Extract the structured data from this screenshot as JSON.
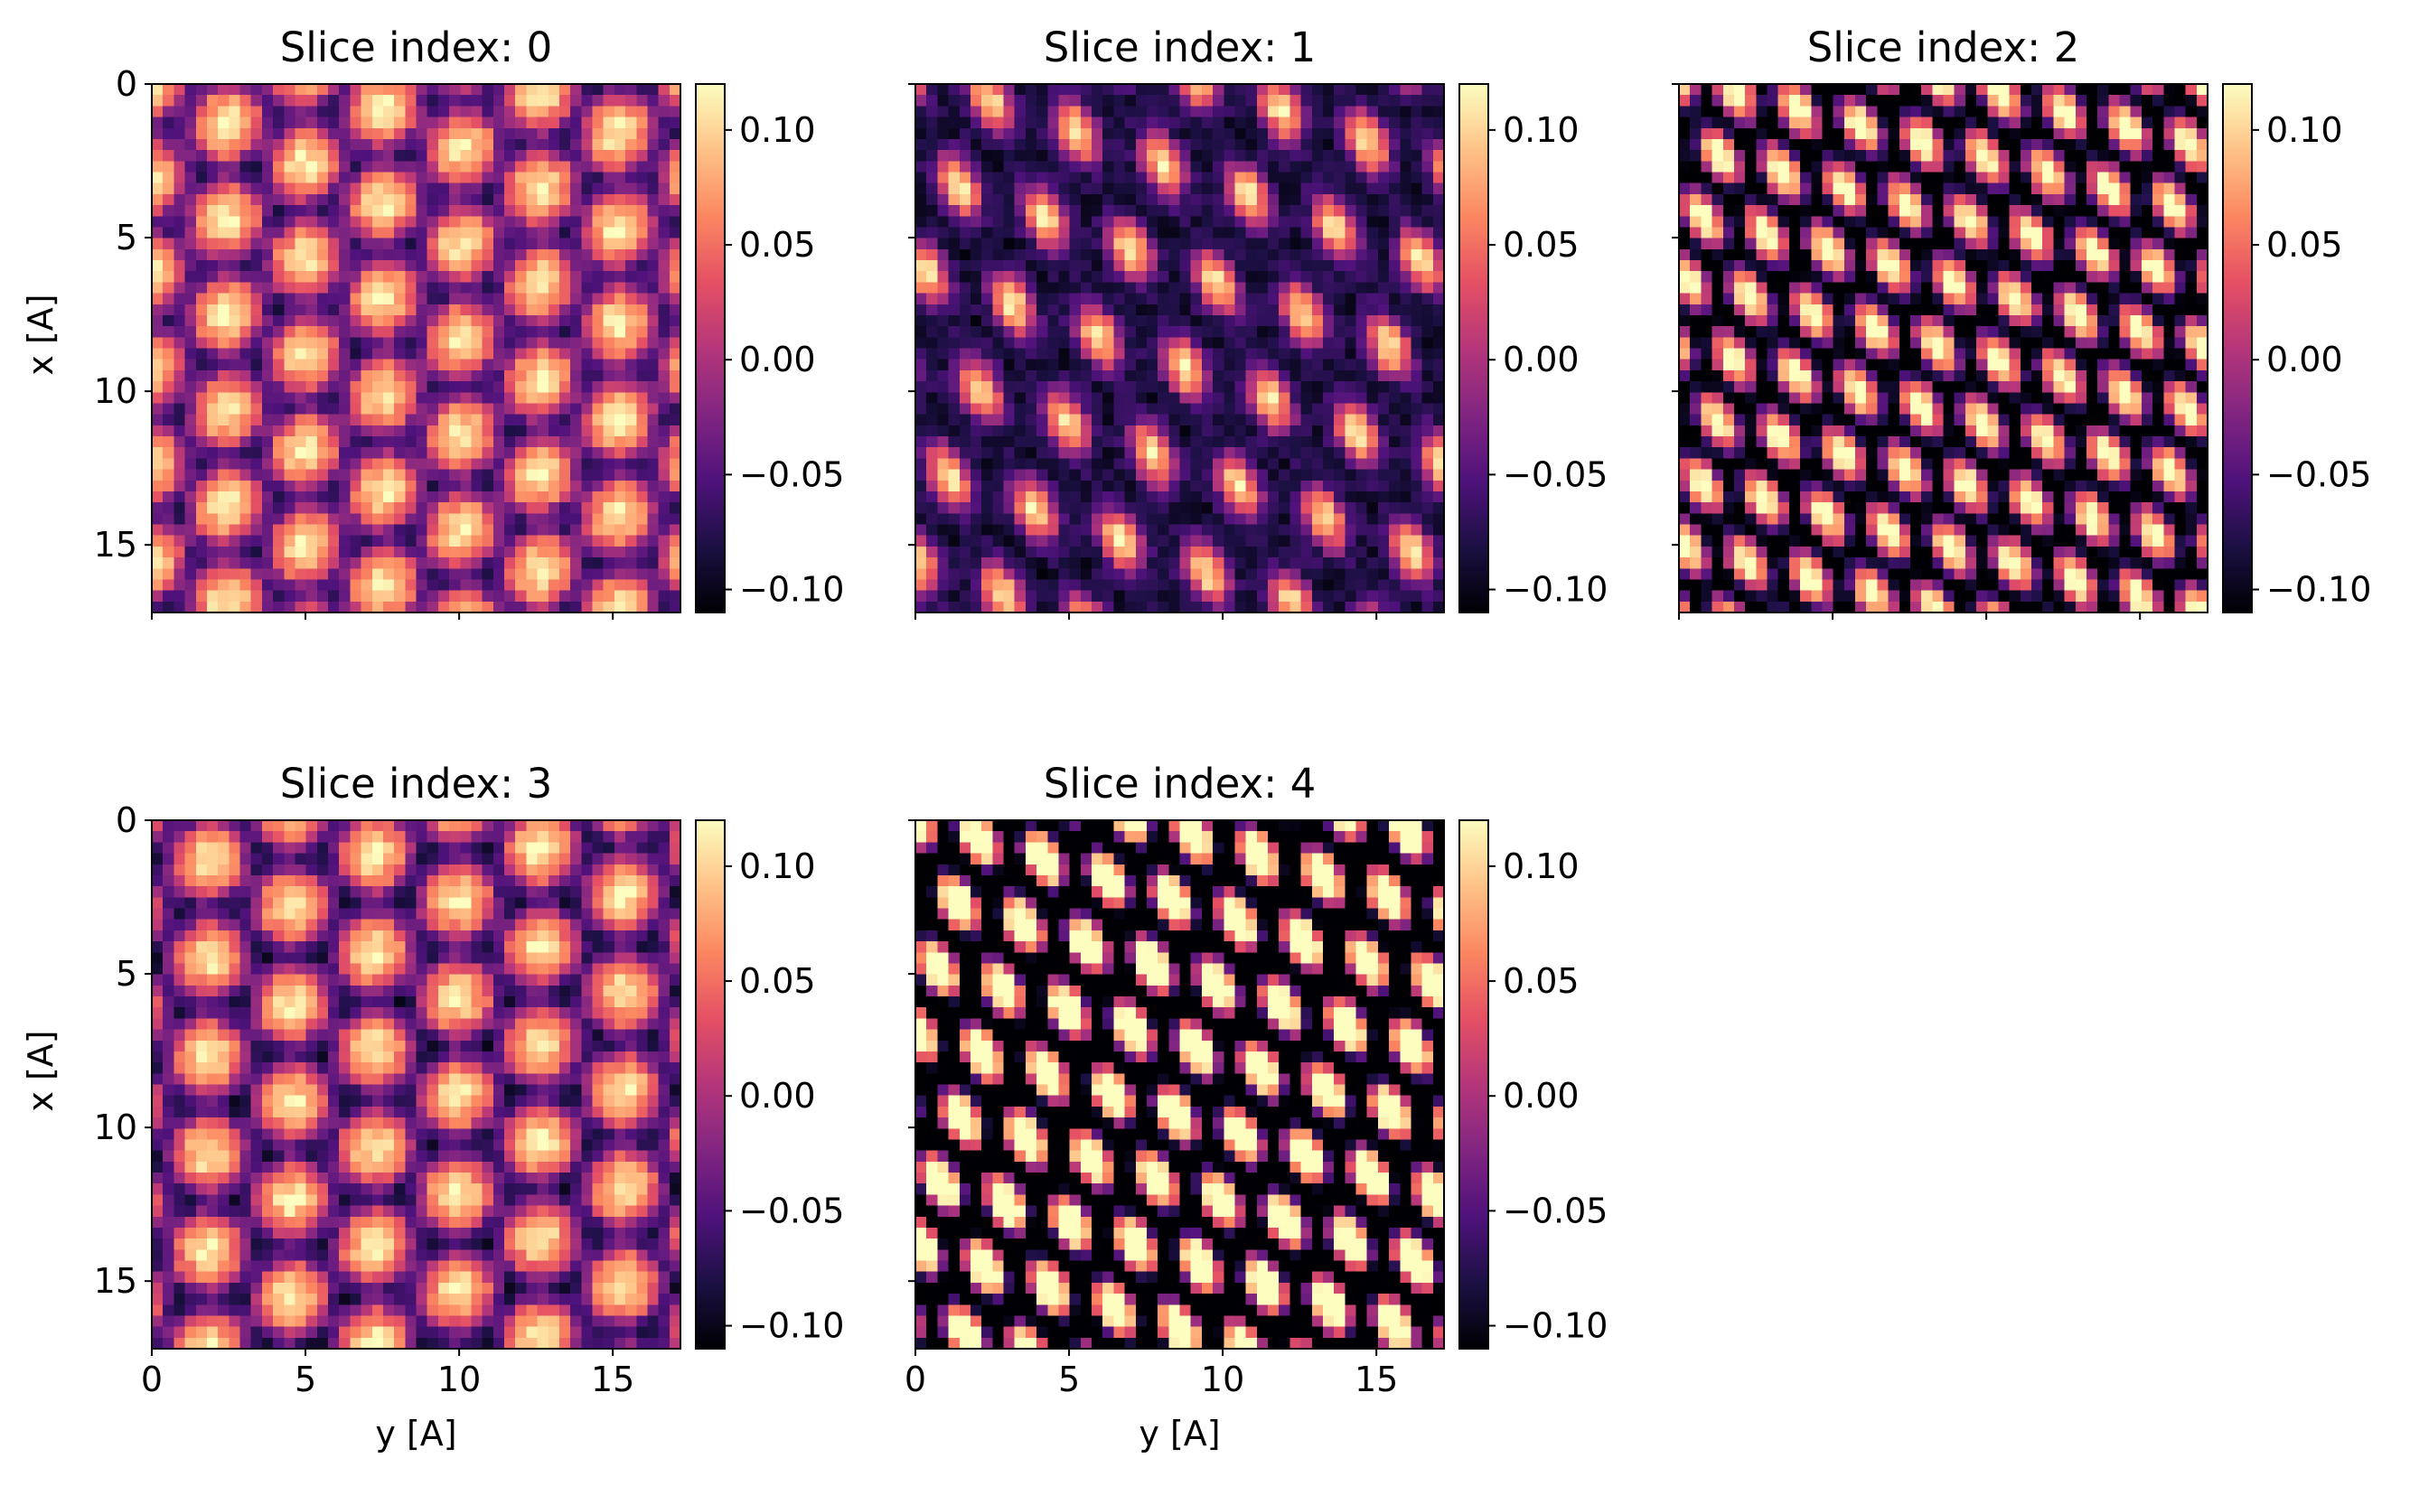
{
  "colormap": {
    "name": "magma",
    "stops": [
      "#000004",
      "#1c1044",
      "#4f127b",
      "#812581",
      "#b5367a",
      "#e55064",
      "#fb8761",
      "#fec287",
      "#fcfdbf"
    ]
  },
  "chart_data": [
    {
      "type": "heatmap",
      "title": "Slice index: 0",
      "xlabel": "y [A]",
      "ylabel": "x [A]",
      "xlim": [
        0,
        17.2
      ],
      "ylim": [
        17.2,
        0
      ],
      "xticks": [
        0,
        5,
        10,
        15
      ],
      "yticks": [
        0,
        5,
        10,
        15
      ],
      "show_x_ticklabels": false,
      "show_y_ticklabels": true,
      "show_xlabel": false,
      "show_ylabel": true,
      "colorbar": {
        "range": [
          -0.11,
          0.12
        ],
        "ticks": [
          "0.10",
          "0.05",
          "0.00",
          "−0.05",
          "−0.10"
        ],
        "tick_values": [
          0.1,
          0.05,
          0.0,
          -0.05,
          -0.1
        ]
      },
      "pattern": {
        "a1": [
          0.0,
          1.0
        ],
        "a2": [
          0.82,
          0.58
        ],
        "spacing": 2.55,
        "bright_amp": 0.075,
        "dark_amp": 0.11,
        "offset": 0.04,
        "phase": 0.3
      }
    },
    {
      "type": "heatmap",
      "title": "Slice index: 1",
      "xlabel": "y [A]",
      "ylabel": "x [A]",
      "xlim": [
        0,
        17.2
      ],
      "ylim": [
        17.2,
        0
      ],
      "xticks": [
        0,
        5,
        10,
        15
      ],
      "yticks": [
        0,
        5,
        10,
        15
      ],
      "show_x_ticklabels": false,
      "show_y_ticklabels": false,
      "show_xlabel": false,
      "show_ylabel": false,
      "colorbar": {
        "range": [
          -0.11,
          0.12
        ],
        "ticks": [
          "0.10",
          "0.05",
          "0.00",
          "−0.05",
          "−0.10"
        ],
        "tick_values": [
          0.1,
          0.05,
          0.0,
          -0.05,
          -0.1
        ]
      },
      "pattern": {
        "a1": [
          0.35,
          0.94
        ],
        "a2": [
          0.94,
          -0.35
        ],
        "spacing": 3.0,
        "bright_amp": 0.17,
        "dark_amp": 0.03,
        "offset": -0.06,
        "phase": 1.1
      }
    },
    {
      "type": "heatmap",
      "title": "Slice index: 2",
      "xlabel": "y [A]",
      "ylabel": "x [A]",
      "xlim": [
        0,
        17.2
      ],
      "ylim": [
        17.2,
        0
      ],
      "xticks": [
        0,
        5,
        10,
        15
      ],
      "yticks": [
        0,
        5,
        10,
        15
      ],
      "show_x_ticklabels": false,
      "show_y_ticklabels": false,
      "show_xlabel": false,
      "show_ylabel": false,
      "colorbar": {
        "range": [
          -0.11,
          0.12
        ],
        "ticks": [
          "0.10",
          "0.05",
          "0.00",
          "−0.05",
          "−0.10"
        ],
        "tick_values": [
          0.1,
          0.05,
          0.0,
          -0.05,
          -0.1
        ]
      },
      "pattern": {
        "a1": [
          0.25,
          0.97
        ],
        "a2": [
          0.97,
          -0.25
        ],
        "spacing": 2.1,
        "bright_amp": 0.15,
        "dark_amp": 0.16,
        "offset": 0.0,
        "phase": 0.7
      }
    },
    {
      "type": "heatmap",
      "title": "Slice index: 3",
      "xlabel": "y [A]",
      "ylabel": "x [A]",
      "xlim": [
        0,
        17.2
      ],
      "ylim": [
        17.2,
        0
      ],
      "xticks": [
        0,
        5,
        10,
        15
      ],
      "yticks": [
        0,
        5,
        10,
        15
      ],
      "show_x_ticklabels": true,
      "show_y_ticklabels": true,
      "show_xlabel": true,
      "show_ylabel": true,
      "colorbar": {
        "range": [
          -0.11,
          0.12
        ],
        "ticks": [
          "0.10",
          "0.05",
          "0.00",
          "−0.05",
          "−0.10"
        ],
        "tick_values": [
          0.1,
          0.05,
          0.0,
          -0.05,
          -0.1
        ]
      },
      "pattern": {
        "a1": [
          0.0,
          1.0
        ],
        "a2": [
          0.85,
          0.53
        ],
        "spacing": 2.7,
        "bright_amp": 0.08,
        "dark_amp": 0.12,
        "offset": 0.035,
        "phase": 2.0
      }
    },
    {
      "type": "heatmap",
      "title": "Slice index: 4",
      "xlabel": "y [A]",
      "ylabel": "x [A]",
      "xlim": [
        0,
        17.2
      ],
      "ylim": [
        17.2,
        0
      ],
      "xticks": [
        0,
        5,
        10,
        15
      ],
      "yticks": [
        0,
        5,
        10,
        15
      ],
      "show_x_ticklabels": true,
      "show_y_ticklabels": false,
      "show_xlabel": true,
      "show_ylabel": false,
      "colorbar": {
        "range": [
          -0.11,
          0.12
        ],
        "ticks": [
          "0.10",
          "0.05",
          "0.00",
          "−0.05",
          "−0.10"
        ],
        "tick_values": [
          0.1,
          0.05,
          0.0,
          -0.05,
          -0.1
        ]
      },
      "pattern": {
        "a1": [
          0.3,
          0.95
        ],
        "a2": [
          0.95,
          -0.3
        ],
        "spacing": 2.2,
        "bright_amp": 0.24,
        "dark_amp": 0.24,
        "offset": 0.0,
        "phase": 0.2
      }
    }
  ]
}
